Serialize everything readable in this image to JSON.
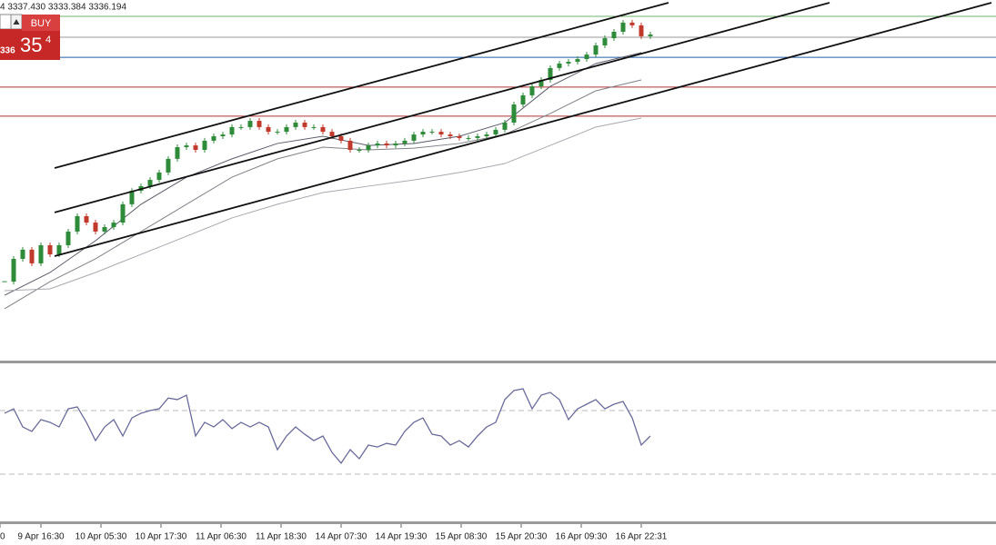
{
  "header": {
    "ohlc": "4 3337.430 3333.384 3336.194"
  },
  "buy_panel": {
    "label": "BUY",
    "price_small": "336",
    "price_big": "35",
    "price_sup": "4"
  },
  "chart_data": {
    "type": "candlestick",
    "ylim": [
      3160,
      3345
    ],
    "closes": [
      3200.5,
      3212.2,
      3216.9,
      3209.9,
      3219.2,
      3214.5,
      3219.2,
      3226.2,
      3234.1,
      3230.8,
      3226.2,
      3228.5,
      3230.8,
      3240.2,
      3247.1,
      3249.5,
      3252.7,
      3256.5,
      3263.5,
      3269.5,
      3270.4,
      3268.1,
      3272.8,
      3275.1,
      3276.0,
      3279.8,
      3279.8,
      3283.0,
      3279.8,
      3277.4,
      3277.4,
      3279.8,
      3282.1,
      3279.8,
      3279.8,
      3277.4,
      3275.1,
      3272.8,
      3268.1,
      3268.1,
      3270.4,
      3271.4,
      3270.4,
      3271.4,
      3272.8,
      3276.0,
      3277.4,
      3277.4,
      3276.0,
      3275.1,
      3274.2,
      3274.2,
      3275.1,
      3276.0,
      3278.4,
      3282.1,
      3291.4,
      3296.1,
      3300.7,
      3304.0,
      3310.1,
      3312.4,
      3313.3,
      3314.7,
      3317.0,
      3321.7,
      3325.4,
      3328.7,
      3333.4,
      3332.0,
      3326.4,
      3327.3
    ],
    "up_color": "#2e8b3a",
    "down_color": "#c0392b",
    "levels": [
      {
        "value": 3336.6,
        "color": "#6db36d"
      },
      {
        "value": 3325.9,
        "color": "#9a9a9a"
      },
      {
        "value": 3315.6,
        "color": "#1f5fa8"
      },
      {
        "value": 3300.3,
        "color": "#b03030"
      },
      {
        "value": 3285.4,
        "color": "#b03030"
      }
    ],
    "channels": [
      {
        "start": [
          5.5,
          3258.8
        ],
        "end": [
          73,
          3343.6
        ]
      },
      {
        "start": [
          5.5,
          3236.0
        ],
        "end": [
          90.7,
          3343.6
        ]
      },
      {
        "start": [
          5.5,
          3213.6
        ],
        "end": [
          108.5,
          3343.6
        ]
      }
    ],
    "ma_x": [
      0,
      5,
      10,
      15,
      20,
      25,
      30,
      35,
      40,
      45,
      50,
      55,
      60,
      65,
      70
    ],
    "moving_averages": [
      {
        "color": "#5a5a6a",
        "values": [
          3193.5,
          3205.2,
          3221.5,
          3240.2,
          3254.1,
          3263.5,
          3271.4,
          3275.1,
          3270.4,
          3271.4,
          3275.1,
          3282.1,
          3300.7,
          3312.4,
          3318.0
        ]
      },
      {
        "color": "#808088",
        "values": [
          3186.6,
          3200.5,
          3212.2,
          3226.2,
          3240.2,
          3254.1,
          3263.5,
          3269.5,
          3268.1,
          3269.0,
          3271.4,
          3276.0,
          3286.8,
          3298.4,
          3304.0
        ]
      },
      {
        "color": "#a8a8b0",
        "values": [
          3195.9,
          3196.8,
          3205.2,
          3214.5,
          3223.8,
          3233.2,
          3240.2,
          3246.2,
          3249.5,
          3252.7,
          3256.5,
          3261.1,
          3270.4,
          3279.8,
          3284.4
        ]
      }
    ],
    "x_labels": [
      "0",
      "9 Apr 16:30",
      "10 Apr 05:30",
      "10 Apr 17:30",
      "11 Apr 06:30",
      "11 Apr 18:30",
      "14 Apr 07:30",
      "14 Apr 19:30",
      "15 Apr 08:30",
      "15 Apr 20:30",
      "16 Apr 09:30",
      "16 Apr 22:31"
    ],
    "rsi": {
      "color": "#6a6a9a",
      "ylim": [
        0,
        100
      ],
      "levels": [
        70,
        30
      ],
      "values": [
        68.3,
        71.1,
        59.7,
        56.9,
        64.3,
        62.6,
        59.7,
        71.1,
        72.3,
        62.6,
        51.1,
        59.7,
        64.3,
        54.0,
        65.4,
        68.3,
        70.0,
        71.1,
        77.9,
        76.9,
        79.7,
        54.0,
        62.6,
        59.7,
        64.3,
        58.6,
        62.6,
        59.7,
        62.6,
        59.7,
        45.4,
        54.0,
        59.7,
        55.1,
        51.1,
        54.0,
        43.7,
        36.9,
        45.4,
        39.7,
        48.3,
        47.1,
        49.4,
        48.3,
        56.9,
        62.6,
        65.4,
        55.1,
        54.0,
        48.3,
        51.1,
        47.1,
        54.0,
        59.7,
        62.6,
        76.9,
        82.6,
        83.7,
        71.1,
        79.7,
        81.4,
        76.9,
        64.3,
        71.1,
        74.0,
        76.9,
        71.1,
        74.0,
        75.7,
        65.4,
        48.3,
        54.0
      ]
    }
  }
}
